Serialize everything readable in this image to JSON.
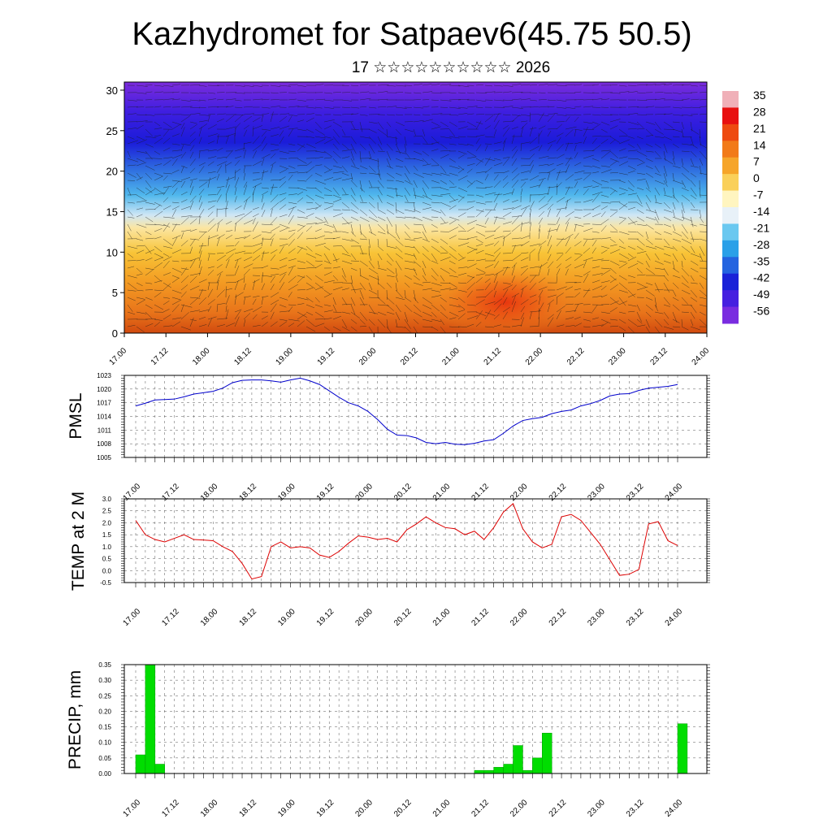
{
  "title": "Kazhydromet for Satpaev6(45.75 50.5)",
  "subtitle": "17 ☆☆☆☆☆☆☆☆☆☆ 2026",
  "colors": {
    "pmsl_line": "#0000cc",
    "temp_line": "#dd0000",
    "precip_bar": "#00dd00",
    "precip_bar_edge": "#009900"
  },
  "chart_data": [
    {
      "type": "heatmap",
      "name_hidden": "",
      "ylim": [
        0,
        31
      ],
      "y_ticks": [
        "0",
        "5",
        "10",
        "15",
        "20",
        "25",
        "30"
      ],
      "y_tick_values": [
        0,
        5,
        10,
        15,
        20,
        25,
        30
      ],
      "x_tick_labels": [
        "17.00",
        "17.12",
        "18.00",
        "18.12",
        "19.00",
        "19.12",
        "20.00",
        "20.12",
        "21.00",
        "21.12",
        "22.00",
        "22.12",
        "23.00",
        "23.12",
        "24.00"
      ],
      "colorbar_labels": [
        "35",
        "28",
        "21",
        "14",
        "7",
        "0",
        "-7",
        "-14",
        "-21",
        "-28",
        "-35",
        "-42",
        "-49",
        "-56"
      ],
      "colorbar_values": [
        35,
        28,
        21,
        14,
        7,
        0,
        -7,
        -14,
        -21,
        -28,
        -35,
        -42,
        -49,
        -56
      ],
      "warm_center": {
        "x": 21.25,
        "level": 3,
        "value": 14
      }
    },
    {
      "type": "line",
      "ylabel": "PMSL",
      "ylim": [
        1005,
        1023
      ],
      "y_ticks": [
        "1005",
        "1008",
        "1011",
        "1014",
        "1017",
        "1020",
        "1023"
      ],
      "x_tick_labels": [
        "17.00",
        "17.12",
        "18.00",
        "18.12",
        "19.00",
        "19.12",
        "20.00",
        "20.12",
        "21.00",
        "21.12",
        "22.00",
        "22.12",
        "23.00",
        "23.12",
        "24.00"
      ],
      "x": [
        17.0,
        17.125,
        17.25,
        17.375,
        17.5,
        17.625,
        17.75,
        17.875,
        18.0,
        18.125,
        18.25,
        18.375,
        18.5,
        18.625,
        18.75,
        18.875,
        19.0,
        19.125,
        19.25,
        19.375,
        19.5,
        19.625,
        19.75,
        19.875,
        20.0,
        20.125,
        20.25,
        20.375,
        20.5,
        20.625,
        20.75,
        20.875,
        21.0,
        21.125,
        21.25,
        21.375,
        21.5,
        21.625,
        21.75,
        21.875,
        22.0,
        22.125,
        22.25,
        22.375,
        22.5,
        22.625,
        22.75,
        22.875,
        23.0,
        23.125,
        23.25,
        23.375,
        23.5,
        23.625,
        23.75,
        23.875,
        24.0
      ],
      "values": [
        1016.3,
        1016.9,
        1017.6,
        1017.7,
        1017.8,
        1018.3,
        1018.9,
        1019.2,
        1019.5,
        1020.2,
        1021.4,
        1021.9,
        1022.0,
        1022.0,
        1021.8,
        1021.5,
        1022.0,
        1022.4,
        1021.8,
        1021.0,
        1019.6,
        1018.2,
        1017.0,
        1016.3,
        1015.1,
        1013.3,
        1011.2,
        1009.9,
        1009.8,
        1009.3,
        1008.3,
        1008.0,
        1008.3,
        1007.9,
        1007.8,
        1008.1,
        1008.6,
        1008.9,
        1010.3,
        1011.9,
        1013.1,
        1013.5,
        1013.8,
        1014.6,
        1015.1,
        1015.4,
        1016.3,
        1016.8,
        1017.5,
        1018.5,
        1018.9,
        1019.0,
        1019.7,
        1020.2,
        1020.4,
        1020.6,
        1021.0
      ]
    },
    {
      "type": "line",
      "ylabel": "TEMP at 2 M",
      "ylim": [
        -0.5,
        3.0
      ],
      "y_ticks": [
        "-0.5",
        "0.0",
        "0.5",
        "1.0",
        "1.5",
        "2.0",
        "2.5",
        "3.0"
      ],
      "x_tick_labels": [
        "17.00",
        "17.12",
        "18.00",
        "18.12",
        "19.00",
        "19.12",
        "20.00",
        "20.12",
        "21.00",
        "21.12",
        "22.00",
        "22.12",
        "23.00",
        "23.12",
        "24.00"
      ],
      "x": [
        17.0,
        17.125,
        17.25,
        17.375,
        17.5,
        17.625,
        17.75,
        17.875,
        18.0,
        18.125,
        18.25,
        18.375,
        18.5,
        18.625,
        18.75,
        18.875,
        19.0,
        19.125,
        19.25,
        19.375,
        19.5,
        19.625,
        19.75,
        19.875,
        20.0,
        20.125,
        20.25,
        20.375,
        20.5,
        20.625,
        20.75,
        20.875,
        21.0,
        21.125,
        21.25,
        21.375,
        21.5,
        21.625,
        21.75,
        21.875,
        22.0,
        22.125,
        22.25,
        22.375,
        22.5,
        22.625,
        22.75,
        22.875,
        23.0,
        23.125,
        23.25,
        23.375,
        23.5,
        23.625,
        23.75,
        23.875,
        24.0
      ],
      "values": [
        2.1,
        1.5,
        1.3,
        1.2,
        1.35,
        1.5,
        1.3,
        1.28,
        1.25,
        1.0,
        0.8,
        0.3,
        -0.35,
        -0.25,
        1.0,
        1.2,
        0.95,
        1.0,
        0.95,
        0.65,
        0.55,
        0.8,
        1.15,
        1.45,
        1.4,
        1.3,
        1.35,
        1.2,
        1.7,
        1.95,
        2.25,
        2.0,
        1.8,
        1.75,
        1.5,
        1.65,
        1.3,
        1.8,
        2.45,
        2.8,
        1.75,
        1.2,
        0.95,
        1.1,
        2.25,
        2.35,
        2.1,
        1.6,
        1.1,
        0.45,
        -0.2,
        -0.15,
        0.05,
        1.95,
        2.05,
        1.25,
        1.05
      ]
    },
    {
      "type": "bar",
      "ylabel": "PRECIP, mm",
      "ylim": [
        0,
        0.35
      ],
      "y_ticks": [
        "0.00",
        "0.05",
        "0.10",
        "0.15",
        "0.20",
        "0.25",
        "0.30",
        "0.35"
      ],
      "x_tick_labels": [
        "17.00",
        "17.12",
        "18.00",
        "18.12",
        "19.00",
        "19.12",
        "20.00",
        "20.12",
        "21.00",
        "21.12",
        "22.00",
        "22.12",
        "23.00",
        "23.12",
        "24.00"
      ],
      "x": [
        17.0,
        17.125,
        17.25,
        21.375,
        21.5,
        21.625,
        21.75,
        21.875,
        22.0,
        22.125,
        22.25,
        22.375,
        24.0
      ],
      "values": [
        0.06,
        0.35,
        0.03,
        0.01,
        0.01,
        0.02,
        0.03,
        0.09,
        0.01,
        0.05,
        0.13,
        0.0,
        0.16
      ]
    }
  ]
}
